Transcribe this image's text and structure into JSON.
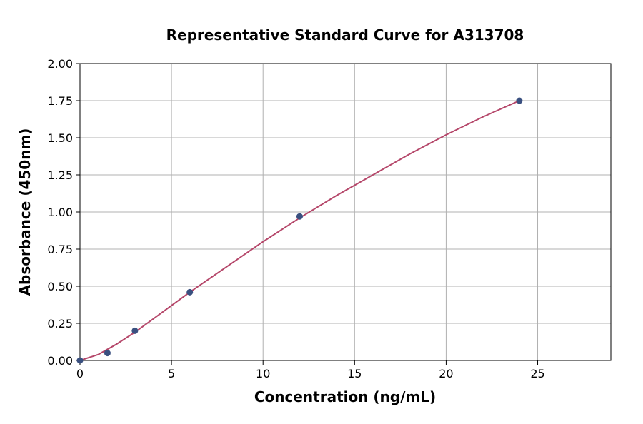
{
  "chart_data": {
    "type": "scatter",
    "title": "Representative Standard Curve for A313708",
    "x_label": "Concentration (ng/mL)",
    "y_label": "Absorbance (450nm)",
    "xlim": [
      0,
      29
    ],
    "ylim": [
      0,
      2
    ],
    "xticks": [
      0,
      5,
      10,
      15,
      20,
      25
    ],
    "yticks": [
      {
        "value": 0,
        "label": "0.00"
      },
      {
        "value": 0.25,
        "label": "0.25"
      },
      {
        "value": 0.5,
        "label": "0.50"
      },
      {
        "value": 0.75,
        "label": "0.75"
      },
      {
        "value": 1,
        "label": "1.00"
      },
      {
        "value": 1.25,
        "label": "1.25"
      },
      {
        "value": 1.5,
        "label": "1.50"
      },
      {
        "value": 1.75,
        "label": "1.75"
      },
      {
        "value": 2,
        "label": "2.00"
      }
    ],
    "grid": true,
    "series": [
      {
        "type": "scatter",
        "color": "#3a5080",
        "x": [
          0,
          1.5,
          3,
          6,
          12,
          24
        ],
        "values": [
          0,
          0.05,
          0.2,
          0.46,
          0.97,
          1.75
        ]
      },
      {
        "type": "line",
        "color": "#b5476a",
        "x": [
          0,
          1,
          2,
          3,
          4,
          6,
          8,
          10,
          12,
          14,
          16,
          18,
          20,
          22,
          24
        ],
        "values": [
          0,
          0.04,
          0.11,
          0.19,
          0.28,
          0.46,
          0.63,
          0.8,
          0.96,
          1.11,
          1.25,
          1.39,
          1.52,
          1.64,
          1.75
        ]
      }
    ]
  }
}
